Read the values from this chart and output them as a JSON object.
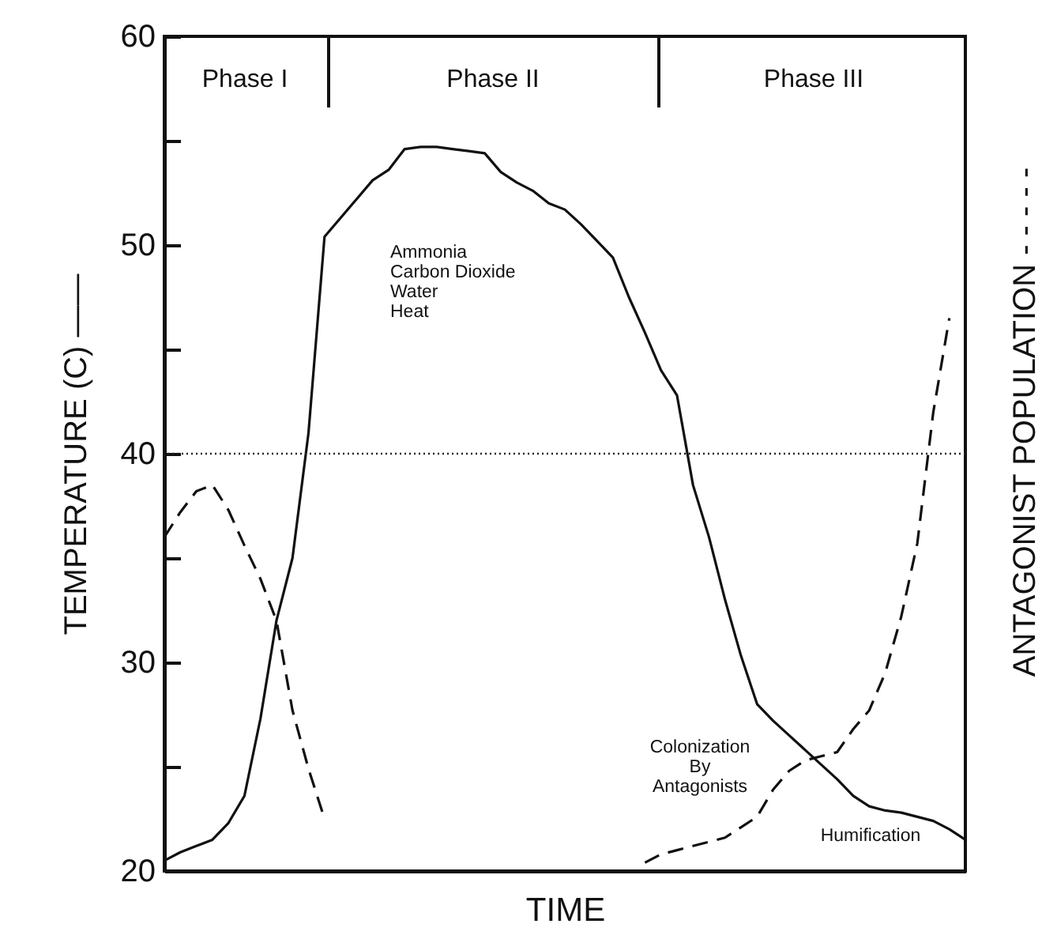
{
  "chart_data": {
    "type": "line",
    "xlabel": "TIME",
    "ylabel": "TEMPERATURE (C) ——",
    "y2label": "ANTAGONIST POPULATION - - - - -",
    "categories": [
      null,
      null,
      null,
      null,
      null,
      null,
      null,
      null,
      null,
      null,
      null,
      null,
      null,
      null,
      null,
      null,
      null,
      null,
      null,
      null,
      null,
      null,
      null,
      null,
      null,
      null,
      null,
      null,
      null,
      null,
      null,
      null,
      null,
      null,
      null,
      null,
      null,
      null,
      null,
      null,
      null,
      null,
      null,
      null,
      null,
      null,
      null,
      null,
      null,
      null,
      null
    ],
    "series": [
      {
        "color": "#111111",
        "line_style": "solid",
        "values": [
          20.5,
          20.9,
          21.2,
          21.5,
          22.3,
          23.6,
          27.3,
          32.0,
          35.0,
          41.0,
          50.4,
          51.3,
          52.2,
          53.1,
          53.6,
          54.6,
          54.7,
          54.7,
          54.6,
          54.5,
          54.4,
          53.5,
          53.0,
          52.6,
          52.0,
          51.7,
          51.0,
          50.2,
          49.4,
          47.5,
          45.8,
          44.0,
          42.8,
          38.5,
          36.0,
          33.0,
          30.3,
          28.0,
          27.2,
          26.5,
          25.8,
          25.1,
          24.4,
          23.6,
          23.1,
          22.9,
          22.8,
          22.6,
          22.4,
          22.0,
          21.5
        ]
      },
      {
        "color": "#111111",
        "line_style": "dashed",
        "values": [
          36.0,
          37.2,
          38.2,
          38.5,
          37.3,
          35.6,
          34.0,
          32.0,
          27.7,
          24.9,
          22.5,
          null,
          null,
          null,
          null,
          null,
          null,
          null,
          null,
          null,
          null,
          null,
          null,
          null,
          null,
          null,
          null,
          null,
          null,
          null,
          20.4,
          20.8,
          21.0,
          21.2,
          21.4,
          21.6,
          22.1,
          22.6,
          23.9,
          24.8,
          25.3,
          25.5,
          25.7,
          26.8,
          27.7,
          29.5,
          32.2,
          35.7,
          42.0,
          46.5,
          null
        ]
      }
    ],
    "ylim": [
      20,
      60
    ],
    "yticks": [
      20,
      {
        "value": 25,
        "label": null
      },
      30,
      {
        "value": 35,
        "label": null
      },
      40,
      {
        "value": 45,
        "label": null
      },
      50,
      {
        "value": 55,
        "label": null
      },
      60
    ],
    "grid": false,
    "marker": "none",
    "ref_lines": [
      {
        "axis": "y",
        "value": 40,
        "line_style": "dotted",
        "color": "#222222"
      }
    ],
    "annotations": [
      "Phase I",
      "Phase II",
      "Phase III",
      "Ammonia\nCarbon Dioxide\nWater\nHeat",
      "Colonization\nBy\nAntagonists",
      "Humification"
    ]
  }
}
